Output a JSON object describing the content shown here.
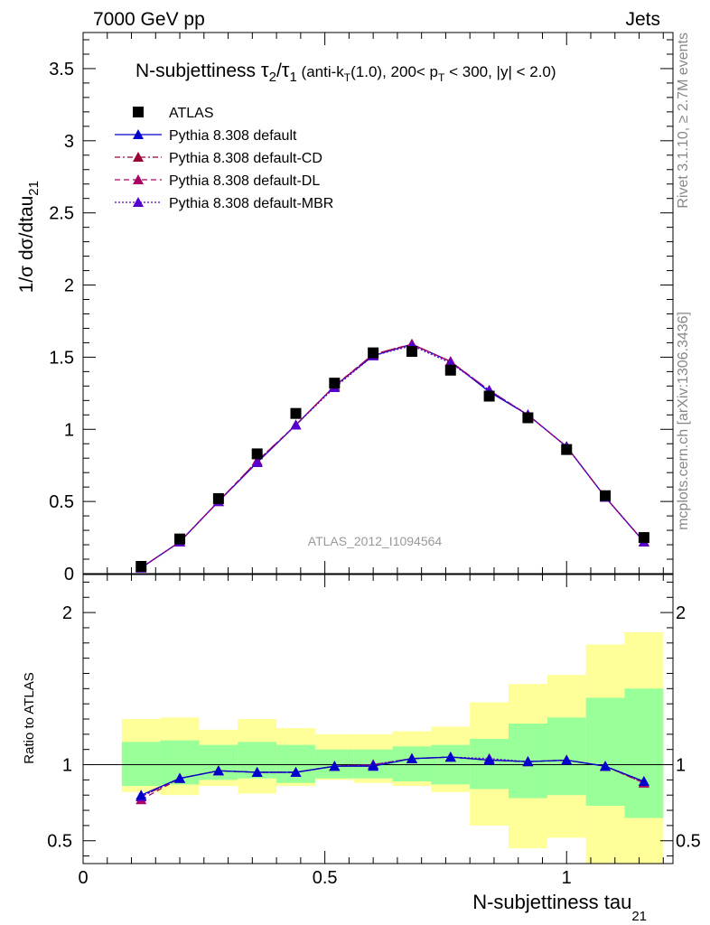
{
  "header": {
    "left": "7000 GeV pp",
    "right": "Jets"
  },
  "side_labels": {
    "rivet": "Rivet 3.1.10, ≥ 2.7M events",
    "mcplots": "mcplots.cern.ch [arXiv:1306.3436]"
  },
  "watermark": "ATLAS_2012_I1094564",
  "colors": {
    "data": "#000000",
    "default": "#0000cc",
    "cd": "#990033",
    "dl": "#aa0066",
    "mbr": "#5500cc",
    "band_inner": "#99ff99",
    "band_outer": "#ffff99"
  },
  "chart_data": [
    {
      "type": "scatter",
      "panel": "main",
      "title_parts": {
        "lead": "N-subjettiness ",
        "tau": "τ",
        "sub2": "2",
        "slash": "/",
        "sub1": "1",
        "open": " (anti-k",
        "subT": "T",
        "mid": "(1.0), 200< p",
        "subT2": "T",
        "tail": " < 300, |y| < 2.0)"
      },
      "ylabel": "1/σ dσ/dtau",
      "ylabel_sub": "21",
      "xlim": [
        0,
        1.22
      ],
      "ylim": [
        0,
        3.75
      ],
      "yticks": [
        "0",
        "0.5",
        "1",
        "1.5",
        "2",
        "2.5",
        "3",
        "3.5"
      ],
      "legend_position": "top-left",
      "x": [
        0.12,
        0.2,
        0.28,
        0.36,
        0.44,
        0.52,
        0.6,
        0.68,
        0.76,
        0.84,
        0.92,
        1.0,
        1.08,
        1.16
      ],
      "series": [
        {
          "name": "ATLAS",
          "style": "square",
          "values": [
            0.05,
            0.24,
            0.52,
            0.83,
            1.11,
            1.32,
            1.53,
            1.54,
            1.41,
            1.23,
            1.08,
            0.86,
            0.54,
            0.25
          ]
        },
        {
          "name": "Pythia 8.308 default",
          "style": "solid",
          "values": [
            0.04,
            0.22,
            0.5,
            0.77,
            1.03,
            1.3,
            1.51,
            1.59,
            1.47,
            1.26,
            1.1,
            0.88,
            0.53,
            0.22
          ]
        },
        {
          "name": "Pythia 8.308 default-CD",
          "style": "dashdot",
          "values": [
            0.04,
            0.22,
            0.5,
            0.78,
            1.03,
            1.3,
            1.52,
            1.59,
            1.47,
            1.27,
            1.1,
            0.88,
            0.53,
            0.22
          ]
        },
        {
          "name": "Pythia 8.308 default-DL",
          "style": "dashed",
          "values": [
            0.04,
            0.22,
            0.5,
            0.78,
            1.03,
            1.3,
            1.52,
            1.59,
            1.47,
            1.27,
            1.1,
            0.88,
            0.53,
            0.22
          ]
        },
        {
          "name": "Pythia 8.308 default-MBR",
          "style": "dotted",
          "values": [
            0.04,
            0.22,
            0.5,
            0.77,
            1.03,
            1.29,
            1.51,
            1.58,
            1.46,
            1.27,
            1.1,
            0.88,
            0.53,
            0.22
          ]
        }
      ]
    },
    {
      "type": "line",
      "panel": "ratio",
      "ylabel": "Ratio to ATLAS",
      "xlabel": "N-subjettiness tau",
      "xlabel_sub": "21",
      "xlim": [
        0,
        1.22
      ],
      "ylim": [
        0.35,
        2.25
      ],
      "yticks": [
        "0.5",
        "1",
        "2"
      ],
      "xticks": [
        "0",
        "0.5",
        "1"
      ],
      "bands": {
        "bins": [
          [
            0.08,
            0.16
          ],
          [
            0.16,
            0.24
          ],
          [
            0.24,
            0.32
          ],
          [
            0.32,
            0.4
          ],
          [
            0.4,
            0.48
          ],
          [
            0.48,
            0.56
          ],
          [
            0.56,
            0.64
          ],
          [
            0.64,
            0.72
          ],
          [
            0.72,
            0.8
          ],
          [
            0.8,
            0.88
          ],
          [
            0.88,
            0.96
          ],
          [
            0.96,
            1.04
          ],
          [
            1.04,
            1.12
          ],
          [
            1.12,
            1.2
          ]
        ],
        "inner_low": [
          0.86,
          0.87,
          0.9,
          0.91,
          0.88,
          0.91,
          0.91,
          0.89,
          0.87,
          0.84,
          0.78,
          0.8,
          0.73,
          0.65
        ],
        "inner_high": [
          1.15,
          1.16,
          1.13,
          1.15,
          1.13,
          1.1,
          1.1,
          1.12,
          1.13,
          1.17,
          1.27,
          1.31,
          1.44,
          1.5
        ],
        "outer_low": [
          0.82,
          0.8,
          0.86,
          0.81,
          0.86,
          0.9,
          0.88,
          0.86,
          0.82,
          0.6,
          0.45,
          0.52,
          0.3,
          0.3
        ],
        "outer_high": [
          1.3,
          1.31,
          1.23,
          1.3,
          1.24,
          1.2,
          1.2,
          1.22,
          1.25,
          1.41,
          1.53,
          1.59,
          1.79,
          1.87
        ]
      },
      "x": [
        0.12,
        0.2,
        0.28,
        0.36,
        0.44,
        0.52,
        0.6,
        0.68,
        0.76,
        0.84,
        0.92,
        1.0,
        1.08,
        1.16
      ],
      "series": [
        {
          "style": "dashdot",
          "values": [
            0.79,
            0.91,
            0.96,
            0.95,
            0.95,
            0.99,
            1.0,
            1.04,
            1.05,
            1.03,
            1.02,
            1.03,
            0.99,
            0.88
          ]
        },
        {
          "style": "dashed",
          "values": [
            0.77,
            0.91,
            0.96,
            0.95,
            0.95,
            0.99,
            1.0,
            1.04,
            1.05,
            1.03,
            1.02,
            1.03,
            0.99,
            0.88
          ]
        },
        {
          "style": "dotted",
          "values": [
            0.79,
            0.91,
            0.96,
            0.95,
            0.95,
            0.99,
            1.0,
            1.04,
            1.05,
            1.04,
            1.02,
            1.03,
            0.99,
            0.89
          ]
        },
        {
          "style": "solid",
          "values": [
            0.8,
            0.91,
            0.96,
            0.95,
            0.95,
            0.99,
            0.99,
            1.04,
            1.05,
            1.03,
            1.02,
            1.03,
            0.99,
            0.89
          ]
        }
      ]
    }
  ]
}
